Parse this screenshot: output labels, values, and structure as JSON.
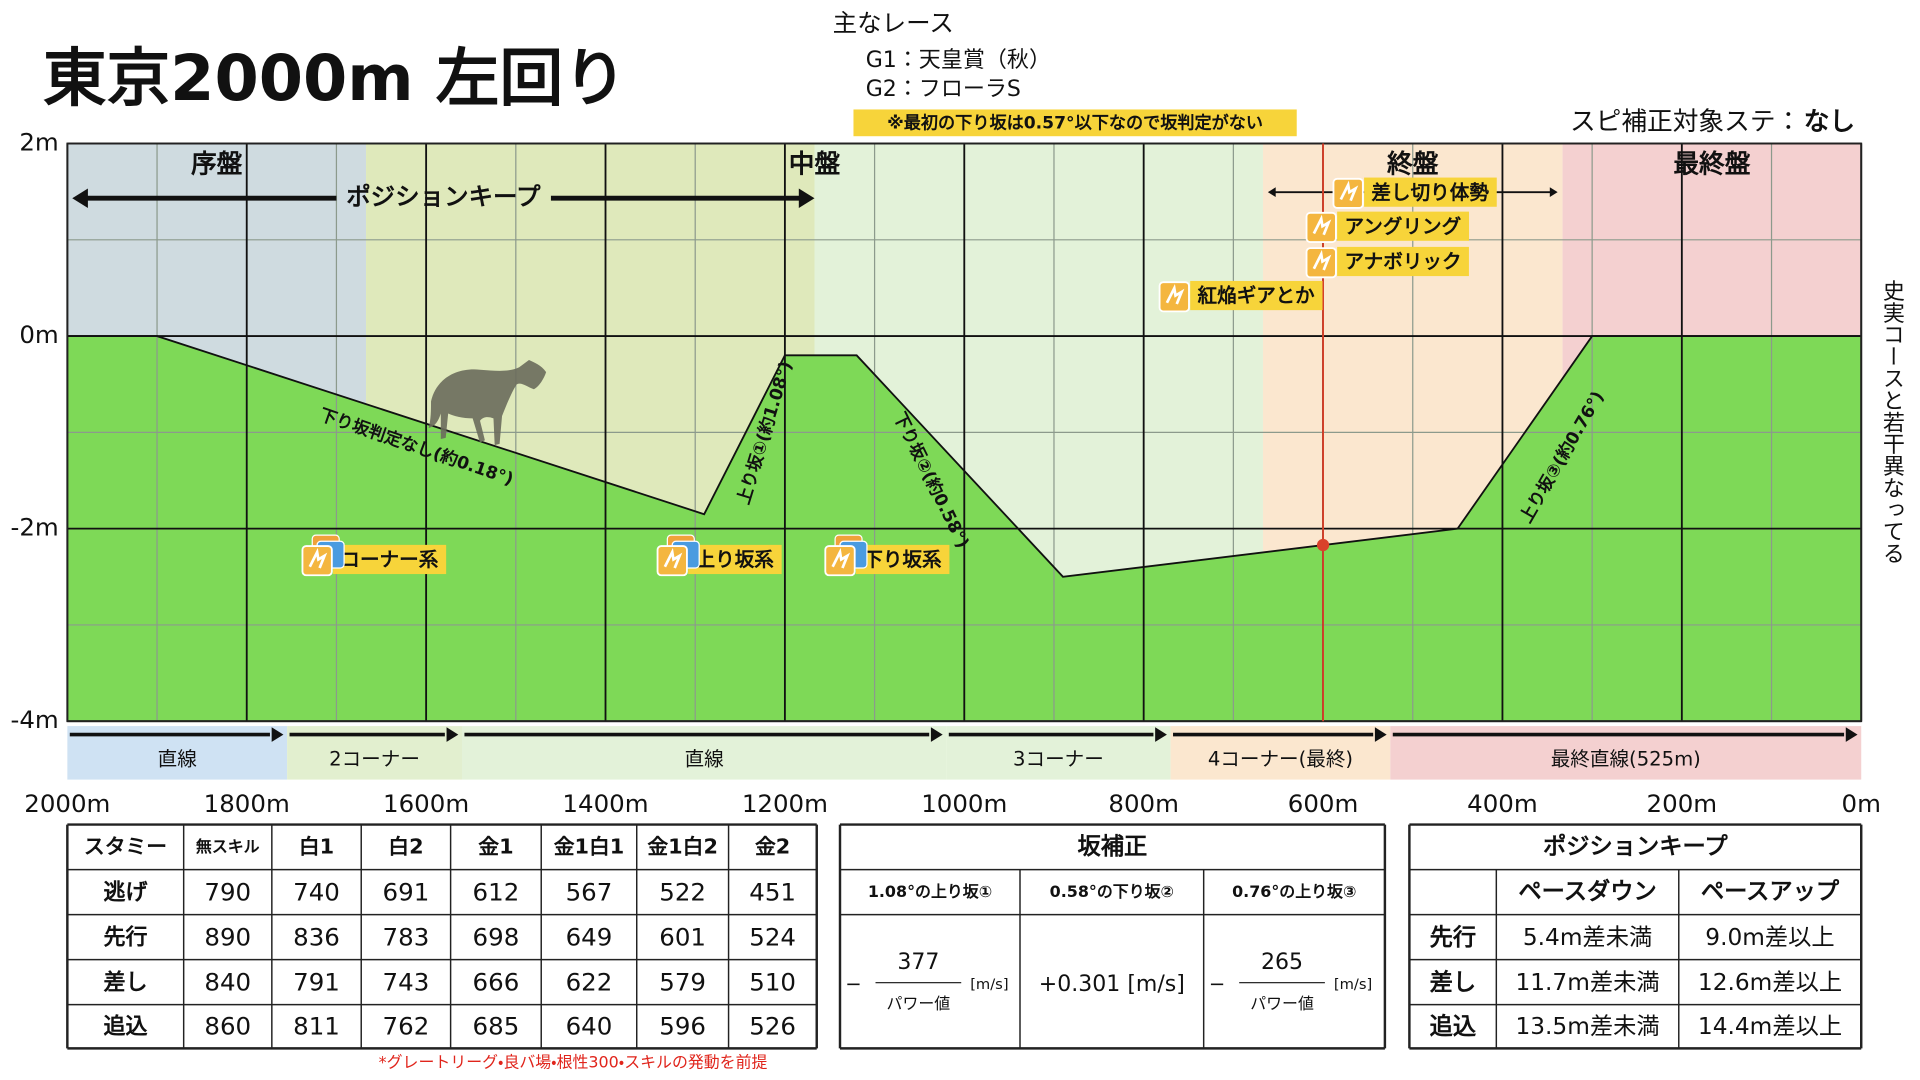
{
  "title": "東京2000m 左回り",
  "races": {
    "heading": "主なレース",
    "items": [
      "G1：天皇賞（秋）",
      "G2：フローラS"
    ]
  },
  "note": "※最初の下り坂は0.57°以下なので坂判定がない",
  "spi": {
    "label": "スピ補正対象ステ：",
    "value": "なし"
  },
  "side_note": "史実コースと若干異なってる",
  "chart_data": {
    "type": "area",
    "x": [
      2000,
      1900,
      1290,
      1200,
      1120,
      890,
      450,
      300,
      0
    ],
    "values": [
      0,
      0,
      -1.85,
      -0.2,
      -0.2,
      -2.5,
      -2,
      0,
      0
    ],
    "color": "#7ed957",
    "xlim": [
      2000,
      0
    ],
    "ylim": [
      -4,
      2
    ],
    "xticks": [
      {
        "value": 2000,
        "label": "2000m"
      },
      {
        "value": 1800,
        "label": "1800m"
      },
      {
        "value": 1600,
        "label": "1600m"
      },
      {
        "value": 1400,
        "label": "1400m"
      },
      {
        "value": 1200,
        "label": "1200m"
      },
      {
        "value": 1000,
        "label": "1000m"
      },
      {
        "value": 800,
        "label": "800m"
      },
      {
        "value": 600,
        "label": "600m"
      },
      {
        "value": 400,
        "label": "400m"
      },
      {
        "value": 200,
        "label": "200m"
      },
      {
        "value": 0,
        "label": "0m"
      }
    ],
    "yticks": [
      {
        "value": 2,
        "label": "2m"
      },
      {
        "value": 0,
        "label": "0m"
      },
      {
        "value": -2,
        "label": "-2m"
      },
      {
        "value": -4,
        "label": "-4m"
      }
    ],
    "grid": true,
    "phases": [
      {
        "name": "序盤",
        "range": [
          2000,
          1667
        ]
      },
      {
        "name": "中盤",
        "range": [
          1667,
          667
        ]
      },
      {
        "name": "終盤",
        "range": [
          667,
          333
        ]
      },
      {
        "name": "最終盤",
        "range": [
          333,
          0
        ]
      }
    ],
    "shading": [
      {
        "range": [
          2000,
          1667
        ],
        "color": "#cfdbe0"
      },
      {
        "range": [
          1667,
          1167
        ],
        "color": "#dfe9bb"
      },
      {
        "range": [
          1167,
          667
        ],
        "color": "#e3f2d9"
      },
      {
        "range": [
          667,
          333
        ],
        "color": "#fbe7cf"
      },
      {
        "range": [
          333,
          0
        ],
        "color": "#f4d0d0"
      }
    ],
    "slopes": [
      "下り坂判定なし(約0.18°)",
      "上り坂①(約1.08°)",
      "下り坂②(約0.58°)",
      "上り坂③(約0.76°)"
    ],
    "position_keep": {
      "label": "ポジションキープ",
      "range": [
        2000,
        1167
      ]
    },
    "skills": [
      "コーナー系",
      "上り坂系",
      "下り坂系",
      "紅焔ギアとか",
      "アナボリック",
      "アングリング",
      "差し切り体勢"
    ],
    "marker": {
      "x": 600,
      "y": -2.17,
      "color": "#d9412b"
    },
    "sections": [
      {
        "name": "直線",
        "range": [
          2000,
          1755
        ],
        "color": "#cfe2f3"
      },
      {
        "name": "2コーナー",
        "range": [
          1755,
          1560
        ],
        "color": "#e2efcf"
      },
      {
        "name": "直線",
        "range": [
          1560,
          1020
        ],
        "color": "#e3f2d9"
      },
      {
        "name": "3コーナー",
        "range": [
          1020,
          770
        ],
        "color": "#e3f2d9"
      },
      {
        "name": "4コーナー(最終)",
        "range": [
          770,
          525
        ],
        "color": "#fbe7cf"
      },
      {
        "name": "最終直線(525m)",
        "range": [
          525,
          0
        ],
        "color": "#f4d0d0"
      }
    ]
  },
  "stamina_table": {
    "header": [
      "スタミー",
      "無スキル",
      "白1",
      "白2",
      "金1",
      "金1白1",
      "金1白2",
      "金2"
    ],
    "rows": [
      [
        "逃げ",
        790,
        740,
        691,
        612,
        567,
        522,
        451
      ],
      [
        "先行",
        890,
        836,
        783,
        698,
        649,
        601,
        524
      ],
      [
        "差し",
        840,
        791,
        743,
        666,
        622,
        579,
        510
      ],
      [
        "追込",
        860,
        811,
        762,
        685,
        640,
        596,
        526
      ]
    ]
  },
  "slope_table": {
    "title": "坂補正",
    "header": [
      "1.08°の上り坂①",
      "0.58°の下り坂②",
      "0.76°の上り坂③"
    ],
    "cells": [
      {
        "sign": "−",
        "numerator": 377,
        "denominator": "パワー値",
        "unit": "[m/s]"
      },
      "+0.301 [m/s]",
      {
        "sign": "−",
        "numerator": 265,
        "denominator": "パワー値",
        "unit": "[m/s]"
      }
    ]
  },
  "position_table": {
    "title": "ポジションキープ",
    "header": [
      "ペースダウン",
      "ペースアップ"
    ],
    "rows": [
      [
        "先行",
        "5.4m差未満",
        "9.0m差以上"
      ],
      [
        "差し",
        "11.7m差未満",
        "12.6m差以上"
      ],
      [
        "追込",
        "13.5m差未満",
        "14.4m差以上"
      ]
    ]
  },
  "footnote": "*グレートリーグ・良バ場・根性300・スキルの発動を前提"
}
